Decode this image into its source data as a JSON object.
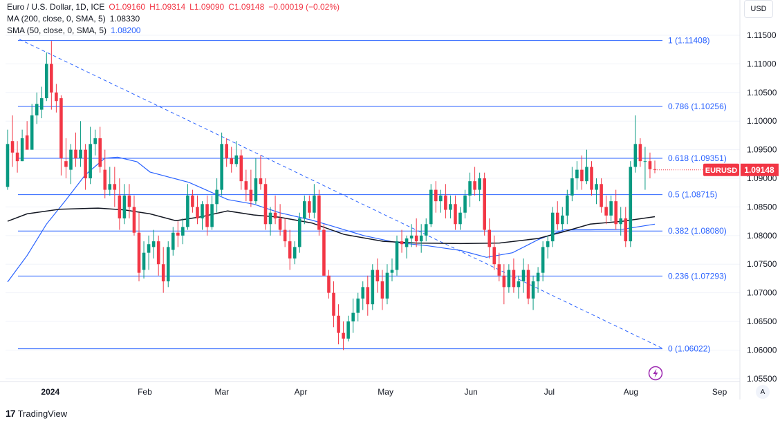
{
  "legend": {
    "symbol": "Euro / U.S. Dollar, 1D, ICE",
    "open": "O1.09160",
    "high": "H1.09314",
    "low": "L1.09090",
    "close": "C1.09148",
    "change": "−0.00019 (−0.02%)",
    "ma200_label": "MA (200, close, 0, SMA, 5)",
    "ma200_value": "1.08330",
    "sma50_label": "SMA (50, close, 0, SMA, 5)",
    "sma50_value": "1.08200"
  },
  "currency_button": "USD",
  "auto_button": "A",
  "branding": {
    "logo_mark": "17",
    "name": "TradingView"
  },
  "colors": {
    "up": "#089981",
    "down": "#f23645",
    "fib": "#2962ff",
    "ma200": "#131722",
    "sma50": "#2962ff",
    "grid": "#f0f3fa"
  },
  "chart_data": {
    "type": "candlestick",
    "title": "Euro / U.S. Dollar, 1D, ICE",
    "ylim": [
      1.0545,
      1.1185
    ],
    "y_ticks": [
      "1.11500",
      "1.11000",
      "1.10500",
      "1.10000",
      "1.09500",
      "1.09000",
      "1.08500",
      "1.08000",
      "1.07500",
      "1.07000",
      "1.06500",
      "1.06000",
      "1.05500"
    ],
    "x_ticks": [
      "2024",
      "Feb",
      "Mar",
      "Apr",
      "May",
      "Jun",
      "Jul",
      "Aug",
      "Sep"
    ],
    "last_price": {
      "symbol": "EURUSD",
      "value": "1.09148"
    },
    "fibonacci": [
      {
        "level": "1",
        "price": 1.11408,
        "label": "1 (1.11408)"
      },
      {
        "level": "0.786",
        "price": 1.10256,
        "label": "0.786 (1.10256)"
      },
      {
        "level": "0.618",
        "price": 1.09351,
        "label": "0.618 (1.09351)"
      },
      {
        "level": "0.5",
        "price": 1.08715,
        "label": "0.5 (1.08715)"
      },
      {
        "level": "0.382",
        "price": 1.0808,
        "label": "0.382 (1.08080)"
      },
      {
        "level": "0.236",
        "price": 1.07293,
        "label": "0.236 (1.07293)"
      },
      {
        "level": "0",
        "price": 1.06022,
        "label": "0 (1.06022)"
      }
    ],
    "trendline": {
      "start_price": 1.1143,
      "end_price": 1.0603,
      "style": "dashed"
    },
    "ma200_path": [
      [
        0,
        1.0825
      ],
      [
        0.03,
        1.0838
      ],
      [
        0.08,
        1.0846
      ],
      [
        0.14,
        1.0848
      ],
      [
        0.18,
        1.0845
      ],
      [
        0.22,
        1.0838
      ],
      [
        0.26,
        1.0826
      ],
      [
        0.3,
        1.0833
      ],
      [
        0.34,
        1.0843
      ],
      [
        0.38,
        1.0836
      ],
      [
        0.42,
        1.0832
      ],
      [
        0.47,
        1.0822
      ],
      [
        0.52,
        1.0802
      ],
      [
        0.58,
        1.079
      ],
      [
        0.63,
        1.0787
      ],
      [
        0.7,
        1.0786
      ],
      [
        0.76,
        1.0787
      ],
      [
        0.82,
        1.0795
      ],
      [
        0.86,
        1.0807
      ],
      [
        0.9,
        1.082
      ],
      [
        0.95,
        1.0825
      ],
      [
        1.0,
        1.0833
      ]
    ],
    "sma50_path": [
      [
        0,
        1.0719
      ],
      [
        0.03,
        1.0765
      ],
      [
        0.06,
        1.082
      ],
      [
        0.09,
        1.0862
      ],
      [
        0.12,
        1.0906
      ],
      [
        0.15,
        1.0935
      ],
      [
        0.17,
        1.0937
      ],
      [
        0.2,
        1.0929
      ],
      [
        0.22,
        1.0911
      ],
      [
        0.25,
        1.0902
      ],
      [
        0.28,
        1.0893
      ],
      [
        0.3,
        1.0883
      ],
      [
        0.34,
        1.0863
      ],
      [
        0.38,
        1.0855
      ],
      [
        0.42,
        1.084
      ],
      [
        0.47,
        1.0827
      ],
      [
        0.5,
        1.0817
      ],
      [
        0.55,
        1.08
      ],
      [
        0.6,
        1.0788
      ],
      [
        0.65,
        1.0782
      ],
      [
        0.7,
        1.0774
      ],
      [
        0.74,
        1.0762
      ],
      [
        0.78,
        1.077
      ],
      [
        0.82,
        1.0793
      ],
      [
        0.86,
        1.081
      ],
      [
        0.9,
        1.081
      ],
      [
        0.95,
        1.0811
      ],
      [
        1.0,
        1.082
      ]
    ],
    "candles": [
      [
        1.0885,
        1.0985,
        1.088,
        1.096
      ],
      [
        1.0965,
        1.101,
        1.092,
        1.0945
      ],
      [
        1.0945,
        1.0965,
        1.091,
        1.093
      ],
      [
        1.093,
        1.0985,
        1.093,
        1.097
      ],
      [
        1.0975,
        1.1,
        1.0955,
        1.095
      ],
      [
        1.095,
        1.103,
        1.095,
        1.101
      ],
      [
        1.101,
        1.105,
        1.0995,
        1.103
      ],
      [
        1.102,
        1.106,
        1.1005,
        1.104
      ],
      [
        1.104,
        1.112,
        1.1035,
        1.11
      ],
      [
        1.11,
        1.114,
        1.102,
        1.105
      ],
      [
        1.105,
        1.1065,
        1.1015,
        1.1035
      ],
      [
        1.104,
        1.1045,
        1.0905,
        1.0935
      ],
      [
        1.093,
        1.097,
        1.09,
        1.092
      ],
      [
        1.0915,
        1.096,
        1.089,
        1.095
      ],
      [
        1.095,
        1.098,
        1.092,
        1.0935
      ],
      [
        1.0935,
        1.1,
        1.092,
        1.095
      ],
      [
        1.095,
        1.096,
        1.088,
        1.09
      ],
      [
        1.09,
        1.099,
        1.089,
        1.096
      ],
      [
        1.096,
        1.0985,
        1.094,
        1.097
      ],
      [
        1.097,
        1.099,
        1.091,
        1.092
      ],
      [
        1.0915,
        1.095,
        1.0865,
        1.088
      ],
      [
        1.088,
        1.092,
        1.087,
        1.089
      ],
      [
        1.089,
        1.092,
        1.085,
        1.088
      ],
      [
        1.087,
        1.09,
        1.081,
        1.083
      ],
      [
        1.083,
        1.089,
        1.082,
        1.087
      ],
      [
        1.087,
        1.089,
        1.083,
        1.085
      ],
      [
        1.085,
        1.087,
        1.08,
        1.0805
      ],
      [
        1.0805,
        1.084,
        1.072,
        1.0735
      ],
      [
        1.074,
        1.079,
        1.0725,
        1.077
      ],
      [
        1.077,
        1.08,
        1.074,
        1.0785
      ],
      [
        1.078,
        1.081,
        1.076,
        1.079
      ],
      [
        1.079,
        1.08,
        1.073,
        1.075
      ],
      [
        1.075,
        1.078,
        1.07,
        1.072
      ],
      [
        1.072,
        1.079,
        1.071,
        1.078
      ],
      [
        1.0775,
        1.0815,
        1.0765,
        1.0805
      ],
      [
        1.0805,
        1.0825,
        1.078,
        1.08
      ],
      [
        1.08,
        1.083,
        1.0785,
        1.0815
      ],
      [
        1.0815,
        1.089,
        1.081,
        1.087
      ],
      [
        1.087,
        1.088,
        1.084,
        1.085
      ],
      [
        1.085,
        1.087,
        1.082,
        1.083
      ],
      [
        1.083,
        1.086,
        1.081,
        1.0855
      ],
      [
        1.0855,
        1.087,
        1.08,
        1.0815
      ],
      [
        1.0815,
        1.087,
        1.081,
        1.0855
      ],
      [
        1.0855,
        1.09,
        1.084,
        1.088
      ],
      [
        1.088,
        1.098,
        1.087,
        1.096
      ],
      [
        1.096,
        1.097,
        1.092,
        1.0935
      ],
      [
        1.0935,
        1.0955,
        1.091,
        1.0925
      ],
      [
        1.0925,
        1.0965,
        1.092,
        1.094
      ],
      [
        1.094,
        1.095,
        1.088,
        1.0895
      ],
      [
        1.0895,
        1.0915,
        1.086,
        1.088
      ],
      [
        1.088,
        1.0915,
        1.085,
        1.086
      ],
      [
        1.086,
        1.0935,
        1.0855,
        1.09
      ],
      [
        1.09,
        1.094,
        1.088,
        1.089
      ],
      [
        1.089,
        1.09,
        1.081,
        1.082
      ],
      [
        1.082,
        1.085,
        1.08,
        1.084
      ],
      [
        1.084,
        1.087,
        1.082,
        1.083
      ],
      [
        1.083,
        1.0855,
        1.08,
        1.081
      ],
      [
        1.081,
        1.083,
        1.078,
        1.079
      ],
      [
        1.079,
        1.081,
        1.074,
        1.076
      ],
      [
        1.076,
        1.079,
        1.075,
        1.078
      ],
      [
        1.078,
        1.084,
        1.077,
        1.083
      ],
      [
        1.083,
        1.087,
        1.082,
        1.086
      ],
      [
        1.086,
        1.087,
        1.083,
        1.084
      ],
      [
        1.084,
        1.089,
        1.083,
        1.087
      ],
      [
        1.087,
        1.088,
        1.08,
        1.081
      ],
      [
        1.081,
        1.082,
        1.073,
        1.073
      ],
      [
        1.073,
        1.074,
        1.069,
        1.07
      ],
      [
        1.07,
        1.072,
        1.064,
        1.066
      ],
      [
        1.066,
        1.068,
        1.061,
        1.063
      ],
      [
        1.063,
        1.065,
        1.06,
        1.062
      ],
      [
        1.062,
        1.066,
        1.0615,
        1.065
      ],
      [
        1.065,
        1.069,
        1.063,
        1.0665
      ],
      [
        1.0665,
        1.07,
        1.065,
        1.069
      ],
      [
        1.069,
        1.072,
        1.067,
        1.071
      ],
      [
        1.071,
        1.073,
        1.066,
        1.068
      ],
      [
        1.068,
        1.075,
        1.067,
        1.074
      ],
      [
        1.074,
        1.076,
        1.07,
        1.072
      ],
      [
        1.072,
        1.074,
        1.067,
        1.069
      ],
      [
        1.069,
        1.075,
        1.068,
        1.0735
      ],
      [
        1.0735,
        1.076,
        1.072,
        1.074
      ],
      [
        1.074,
        1.08,
        1.073,
        1.079
      ],
      [
        1.079,
        1.081,
        1.077,
        1.0785
      ],
      [
        1.078,
        1.08,
        1.076,
        1.0795
      ],
      [
        1.0795,
        1.082,
        1.078,
        1.08
      ],
      [
        1.08,
        1.083,
        1.078,
        1.079
      ],
      [
        1.079,
        1.082,
        1.077,
        1.08
      ],
      [
        1.08,
        1.083,
        1.079,
        1.082
      ],
      [
        1.082,
        1.089,
        1.0815,
        1.088
      ],
      [
        1.088,
        1.0895,
        1.084,
        1.086
      ],
      [
        1.086,
        1.088,
        1.084,
        1.087
      ],
      [
        1.087,
        1.089,
        1.083,
        1.0845
      ],
      [
        1.0845,
        1.087,
        1.083,
        1.0855
      ],
      [
        1.0855,
        1.087,
        1.081,
        1.082
      ],
      [
        1.082,
        1.085,
        1.081,
        1.084
      ],
      [
        1.084,
        1.088,
        1.083,
        1.087
      ],
      [
        1.087,
        1.091,
        1.085,
        1.0895
      ],
      [
        1.0895,
        1.092,
        1.087,
        1.088
      ],
      [
        1.088,
        1.091,
        1.086,
        1.09
      ],
      [
        1.09,
        1.091,
        1.08,
        1.081
      ],
      [
        1.081,
        1.083,
        1.076,
        1.078
      ],
      [
        1.078,
        1.08,
        1.074,
        1.075
      ],
      [
        1.075,
        1.077,
        1.072,
        1.073
      ],
      [
        1.073,
        1.075,
        1.068,
        1.071
      ],
      [
        1.071,
        1.075,
        1.07,
        1.074
      ],
      [
        1.074,
        1.076,
        1.07,
        1.071
      ],
      [
        1.071,
        1.073,
        1.069,
        1.072
      ],
      [
        1.072,
        1.076,
        1.07,
        1.074
      ],
      [
        1.074,
        1.075,
        1.068,
        1.069
      ],
      [
        1.069,
        1.073,
        1.067,
        1.072
      ],
      [
        1.072,
        1.0745,
        1.07,
        1.0735
      ],
      [
        1.0735,
        1.079,
        1.072,
        1.078
      ],
      [
        1.078,
        1.08,
        1.076,
        1.079
      ],
      [
        1.079,
        1.085,
        1.078,
        1.084
      ],
      [
        1.084,
        1.086,
        1.081,
        1.082
      ],
      [
        1.082,
        1.085,
        1.081,
        1.0835
      ],
      [
        1.0835,
        1.088,
        1.082,
        1.087
      ],
      [
        1.087,
        1.092,
        1.086,
        1.09
      ],
      [
        1.09,
        1.093,
        1.088,
        1.0915
      ],
      [
        1.0915,
        1.094,
        1.088,
        1.0895
      ],
      [
        1.0895,
        1.095,
        1.089,
        1.092
      ],
      [
        1.092,
        1.093,
        1.087,
        1.088
      ],
      [
        1.088,
        1.09,
        1.0855,
        1.089
      ],
      [
        1.089,
        1.09,
        1.084,
        1.085
      ],
      [
        1.085,
        1.087,
        1.082,
        1.0835
      ],
      [
        1.0835,
        1.087,
        1.0825,
        1.086
      ],
      [
        1.086,
        1.088,
        1.081,
        1.082
      ],
      [
        1.082,
        1.085,
        1.08,
        1.083
      ],
      [
        1.083,
        1.085,
        1.078,
        1.079
      ],
      [
        1.079,
        1.093,
        1.078,
        1.092
      ],
      [
        1.092,
        1.101,
        1.091,
        1.096
      ],
      [
        1.096,
        1.097,
        1.092,
        1.093
      ],
      [
        1.093,
        1.0955,
        1.088,
        1.093
      ],
      [
        1.093,
        1.0945,
        1.09,
        1.0916
      ],
      [
        1.0916,
        1.0931,
        1.0909,
        1.0915
      ]
    ]
  }
}
